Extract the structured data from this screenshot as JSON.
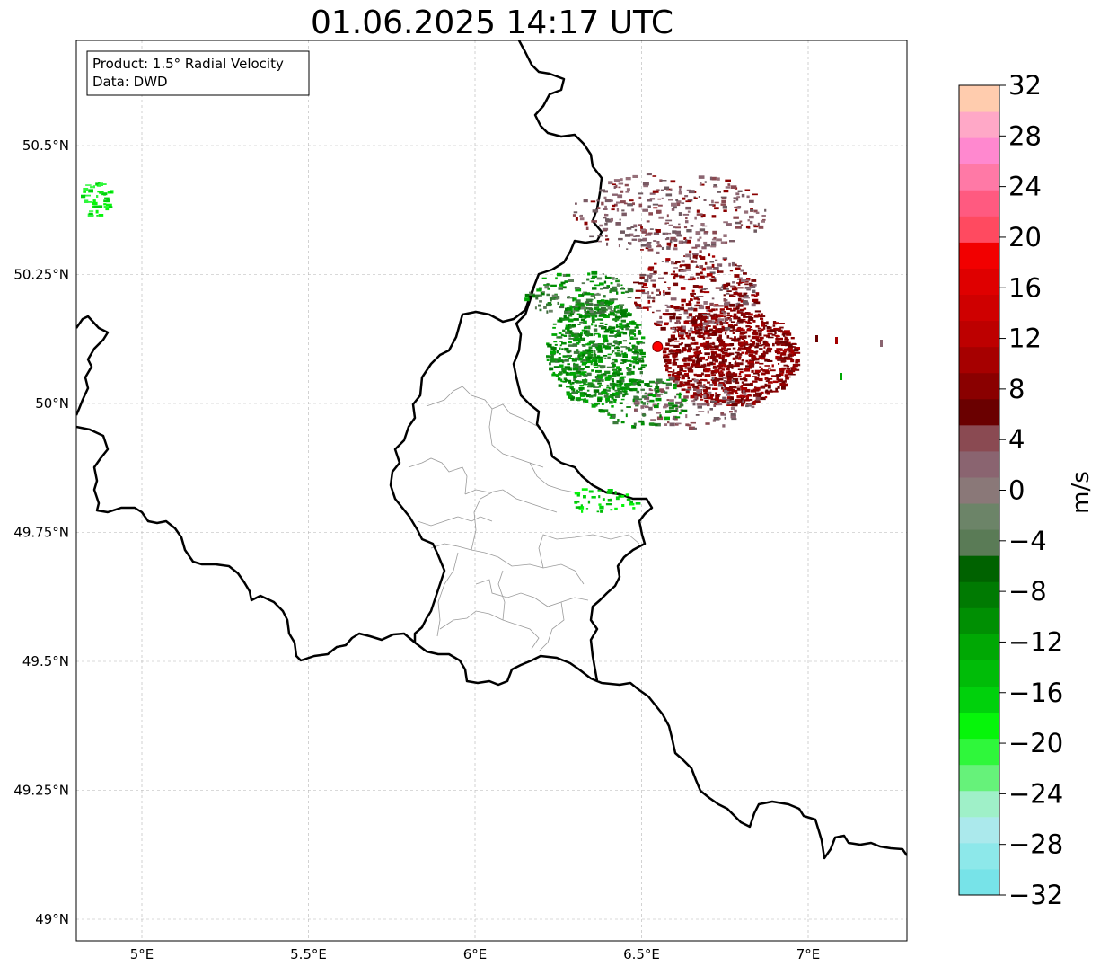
{
  "title": "01.06.2025 14:17 UTC",
  "info_box": {
    "product": "Product: 1.5° Radial Velocity",
    "data": "Data: DWD"
  },
  "map": {
    "lon_ticks": [
      {
        "value": 5.0,
        "label": "5°E"
      },
      {
        "value": 5.5,
        "label": "5.5°E"
      },
      {
        "value": 6.0,
        "label": "6°E"
      },
      {
        "value": 6.5,
        "label": "6.5°E"
      },
      {
        "value": 7.0,
        "label": "7°E"
      }
    ],
    "lat_ticks": [
      {
        "value": 50.5,
        "label": "50.5°N"
      },
      {
        "value": 50.25,
        "label": "50.25°N"
      },
      {
        "value": 50.0,
        "label": "50°N"
      },
      {
        "value": 49.75,
        "label": "49.75°N"
      },
      {
        "value": 49.5,
        "label": "49.5°N"
      },
      {
        "value": 49.25,
        "label": "49.25°N"
      },
      {
        "value": 49.0,
        "label": "49°N"
      }
    ],
    "radar_site": {
      "lon": 6.548,
      "lat": 50.11,
      "color": "#ff0000"
    }
  },
  "colorbar": {
    "label": "m/s",
    "min": -32,
    "max": 32,
    "ticks": [
      {
        "value": 32,
        "label": "32"
      },
      {
        "value": 28,
        "label": "28"
      },
      {
        "value": 24,
        "label": "24"
      },
      {
        "value": 20,
        "label": "20"
      },
      {
        "value": 16,
        "label": "16"
      },
      {
        "value": 12,
        "label": "12"
      },
      {
        "value": 8,
        "label": "8"
      },
      {
        "value": 4,
        "label": "4"
      },
      {
        "value": 0,
        "label": "0"
      },
      {
        "value": -4,
        "label": "−4"
      },
      {
        "value": -8,
        "label": "−8"
      },
      {
        "value": -12,
        "label": "−12"
      },
      {
        "value": -16,
        "label": "−16"
      },
      {
        "value": -20,
        "label": "−20"
      },
      {
        "value": -24,
        "label": "−24"
      },
      {
        "value": -28,
        "label": "−28"
      },
      {
        "value": -32,
        "label": "−32"
      }
    ],
    "colors_bottom_to_top": [
      "#77e3e8",
      "#8de8ea",
      "#abe9ec",
      "#9ff0c8",
      "#66f27a",
      "#2ff73b",
      "#06f50a",
      "#00d10c",
      "#00bc08",
      "#00a804",
      "#008f03",
      "#007a02",
      "#006200",
      "#5a7b56",
      "#6c8468",
      "#8a7878",
      "#8a6470",
      "#8a4a52",
      "#6a0000",
      "#8a0000",
      "#a60000",
      "#bd0000",
      "#cf0000",
      "#df0000",
      "#f20000",
      "#ff4a60",
      "#ff5a80",
      "#ff79a6",
      "#ff88cf",
      "#ffa8c7",
      "#ffccae"
    ]
  }
}
